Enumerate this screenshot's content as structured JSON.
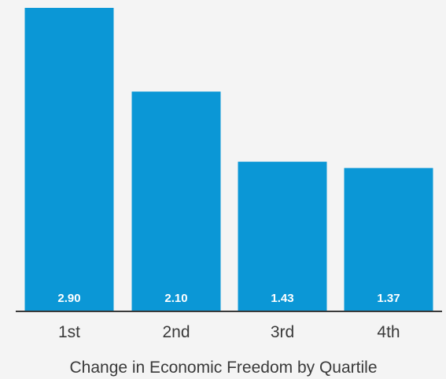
{
  "chart_data": {
    "type": "bar",
    "categories": [
      "1st",
      "2nd",
      "3rd",
      "4th"
    ],
    "values": [
      2.9,
      2.1,
      1.43,
      1.37
    ],
    "data_labels": [
      "2.90",
      "2.10",
      "1.43",
      "1.37"
    ],
    "title": "",
    "xlabel": "Change in Economic Freedom by Quartile",
    "ylabel": "",
    "ylim": [
      0,
      2.9
    ],
    "grid": false,
    "legend": "none",
    "bar_color": "#0b97d6",
    "label_color": "#ffffff",
    "axis_color": "#3a3a3a"
  }
}
